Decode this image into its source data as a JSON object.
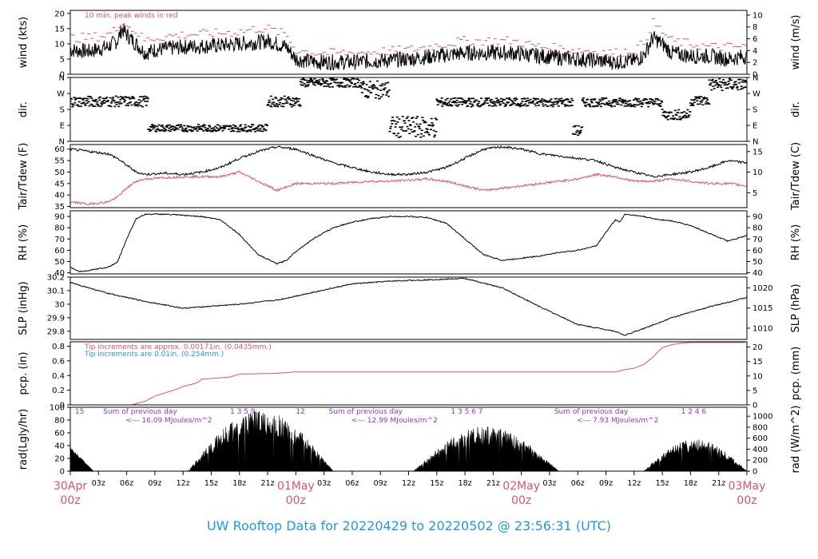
{
  "footer": "UW Rooftop Data for 20220429  to  20220502 @ 23:56:31  (UTC)",
  "colors": {
    "red": "#DF536B",
    "blue": "#2297E6",
    "purple": "#9933CC",
    "black": "#000000"
  },
  "x_ticks": [
    {
      "h": 0,
      "label": "30Apr",
      "sub": "00z",
      "major": true
    },
    {
      "h": 3,
      "label": "03z"
    },
    {
      "h": 6,
      "label": "06z"
    },
    {
      "h": 9,
      "label": "09z"
    },
    {
      "h": 12,
      "label": "12z"
    },
    {
      "h": 15,
      "label": "15z"
    },
    {
      "h": 18,
      "label": "18z"
    },
    {
      "h": 21,
      "label": "21z"
    },
    {
      "h": 24,
      "label": "01May",
      "sub": "00z",
      "major": true
    },
    {
      "h": 27,
      "label": "03z"
    },
    {
      "h": 30,
      "label": "06z"
    },
    {
      "h": 33,
      "label": "09z"
    },
    {
      "h": 36,
      "label": "12z"
    },
    {
      "h": 39,
      "label": "15z"
    },
    {
      "h": 42,
      "label": "18z"
    },
    {
      "h": 45,
      "label": "21z"
    },
    {
      "h": 48,
      "label": "02May",
      "sub": "00z",
      "major": true
    },
    {
      "h": 51,
      "label": "03z"
    },
    {
      "h": 54,
      "label": "06z"
    },
    {
      "h": 57,
      "label": "09z"
    },
    {
      "h": 60,
      "label": "12z"
    },
    {
      "h": 63,
      "label": "15z"
    },
    {
      "h": 66,
      "label": "18z"
    },
    {
      "h": 69,
      "label": "21z"
    },
    {
      "h": 72,
      "label": "03May",
      "sub": "00z",
      "major": true
    }
  ],
  "chart_data": [
    {
      "id": "wind",
      "type": "line",
      "ylabel": "wind (kts)",
      "ylabel_right": "wind (m/s)",
      "ylim": [
        0,
        21
      ],
      "yticks": [
        0,
        5,
        10,
        15,
        20
      ],
      "right_ylim": [
        0,
        10.8
      ],
      "right_yticks": [
        0,
        2,
        4,
        6,
        8,
        10
      ],
      "annotation": "10 min. peak winds in red",
      "series": [
        {
          "style": "noisy-black",
          "color": "#000000",
          "x": [
            0,
            2,
            4,
            5,
            5.5,
            6,
            7,
            8,
            9,
            12,
            16,
            18,
            20,
            21,
            22,
            23,
            24,
            26,
            30,
            36,
            42,
            47,
            50,
            54,
            58,
            60,
            61,
            62,
            63,
            64,
            66,
            68,
            70,
            72
          ],
          "y": [
            8,
            7.5,
            9,
            11,
            15,
            13,
            10,
            7,
            8,
            9,
            9.5,
            10,
            10.5,
            11,
            10,
            9,
            5,
            4,
            4,
            5,
            7,
            7,
            6,
            5,
            4,
            4.5,
            6,
            12,
            10,
            7,
            6,
            6,
            5,
            6
          ]
        },
        {
          "style": "dashes",
          "color": "#DF536B",
          "x": [
            0,
            2,
            4,
            5,
            5.5,
            6,
            7,
            8,
            9,
            12,
            16,
            18,
            20,
            21,
            22,
            23,
            24,
            26,
            30,
            36,
            42,
            47,
            50,
            54,
            58,
            60,
            61,
            62,
            63,
            64,
            66,
            68,
            70,
            72
          ],
          "y": [
            12,
            12,
            13,
            15,
            18,
            16,
            14,
            11,
            12,
            13,
            13.5,
            14,
            15,
            15,
            14,
            13,
            8,
            7,
            7,
            8,
            11,
            11,
            9,
            8,
            7,
            8,
            10,
            17,
            14,
            11,
            10,
            9,
            9,
            9
          ]
        }
      ]
    },
    {
      "id": "dir",
      "type": "scatter",
      "ylabel": "dir.",
      "ylim": [
        0,
        360
      ],
      "ytick_labels": [
        {
          "v": 0,
          "t": "N"
        },
        {
          "v": 90,
          "t": "E"
        },
        {
          "v": 180,
          "t": "S"
        },
        {
          "v": 270,
          "t": "W"
        },
        {
          "v": 360,
          "t": "N"
        }
      ],
      "segments": [
        [
          0,
          8.3,
          225,
          30
        ],
        [
          8.3,
          21,
          75,
          20
        ],
        [
          21,
          24.5,
          225,
          30
        ],
        [
          24.5,
          31,
          330,
          25
        ],
        [
          31,
          34,
          290,
          50
        ],
        [
          34,
          39,
          80,
          60
        ],
        [
          39,
          53.5,
          220,
          25
        ],
        [
          53.5,
          54.5,
          60,
          30
        ],
        [
          54.5,
          63,
          220,
          25
        ],
        [
          63,
          66,
          150,
          30
        ],
        [
          66,
          68,
          230,
          30
        ],
        [
          68,
          72,
          320,
          35
        ]
      ]
    },
    {
      "id": "temp",
      "type": "line",
      "ylabel": "Tair/Tdew (F)",
      "ylabel_right": "Tair/Tdew (C)",
      "ylim": [
        34.5,
        62
      ],
      "yticks": [
        35,
        40,
        45,
        50,
        55,
        60
      ],
      "right_ylim": [
        1.4,
        16.7
      ],
      "right_yticks": [
        5,
        10,
        15
      ],
      "series": [
        {
          "name": "Tair",
          "color": "#000000",
          "x": [
            0,
            2,
            4,
            5,
            6,
            7,
            8,
            10,
            12,
            14,
            16,
            18,
            20,
            22,
            24,
            26,
            28,
            30,
            32,
            34,
            36,
            38,
            40,
            42,
            44,
            46,
            48,
            50,
            52,
            54,
            56,
            58,
            60,
            62,
            64,
            66,
            68,
            70,
            72
          ],
          "y": [
            60,
            59,
            58,
            56,
            53,
            50,
            49,
            49.5,
            49,
            50,
            52,
            56,
            59,
            61,
            60,
            57,
            54,
            52,
            50,
            49,
            49,
            50,
            52,
            56,
            60,
            61,
            60,
            58,
            57,
            56,
            55,
            52,
            50,
            48,
            49,
            50,
            52,
            55,
            54
          ]
        },
        {
          "name": "Tdew",
          "color": "#DF536B",
          "x": [
            0,
            2,
            4,
            5,
            6,
            7,
            8,
            10,
            12,
            14,
            16,
            18,
            20,
            22,
            24,
            26,
            28,
            30,
            32,
            34,
            36,
            38,
            40,
            42,
            44,
            46,
            48,
            50,
            52,
            54,
            56,
            58,
            60,
            62,
            64,
            66,
            68,
            70,
            72
          ],
          "y": [
            37,
            36,
            37,
            39,
            43,
            46,
            47,
            47.5,
            48,
            48,
            48,
            50,
            46,
            42,
            45,
            45,
            45,
            45.5,
            46,
            46,
            46.5,
            47,
            46,
            44,
            42,
            43,
            44,
            45,
            46,
            47,
            49,
            48,
            46,
            46,
            47,
            46,
            45,
            45,
            44
          ]
        }
      ]
    },
    {
      "id": "rh",
      "type": "line",
      "ylabel": "RH (%)",
      "ylabel_right": "RH (%)",
      "ylim": [
        39,
        95
      ],
      "yticks": [
        40,
        50,
        60,
        70,
        80,
        90
      ],
      "series": [
        {
          "color": "#000000",
          "x": [
            0,
            1,
            2,
            4,
            5,
            6,
            7,
            8,
            10,
            12,
            14,
            16,
            18,
            20,
            21,
            22,
            23,
            24,
            26,
            28,
            30,
            32,
            34,
            36,
            38,
            40,
            42,
            44,
            46,
            48,
            50,
            52,
            54,
            56,
            57,
            58,
            58.5,
            59,
            60,
            61,
            62,
            64,
            66,
            68,
            70,
            72
          ],
          "y": [
            45,
            41,
            42,
            45,
            49,
            70,
            88,
            92,
            92,
            91,
            90,
            87,
            74,
            56,
            52,
            48,
            51,
            59,
            71,
            80,
            85,
            88,
            90,
            90,
            89,
            84,
            70,
            56,
            51,
            53,
            55,
            58,
            60,
            64,
            76,
            87,
            85,
            92,
            91,
            90,
            88,
            86,
            82,
            75,
            68,
            73
          ]
        }
      ]
    },
    {
      "id": "slp",
      "type": "line",
      "ylabel": "SLP (inHg)",
      "ylabel_right": "SLP (hPa)",
      "ylim": [
        29.74,
        30.2
      ],
      "yticks": [
        29.8,
        29.9,
        30.0,
        30.1,
        30.2
      ],
      "right_ylim": [
        1007.2,
        1022.7
      ],
      "right_yticks": [
        1010,
        1015,
        1020
      ],
      "series": [
        {
          "color": "#000000",
          "x": [
            0,
            4,
            8,
            12,
            14,
            18,
            22,
            26,
            30,
            34,
            38,
            42,
            46,
            50,
            54,
            58,
            59,
            61,
            64,
            68,
            72
          ],
          "y": [
            30.16,
            30.08,
            30.02,
            29.97,
            29.98,
            30.0,
            30.03,
            30.09,
            30.15,
            30.17,
            30.18,
            30.19,
            30.12,
            29.98,
            29.85,
            29.8,
            29.77,
            29.82,
            29.9,
            29.98,
            30.05
          ]
        }
      ]
    },
    {
      "id": "pcp",
      "type": "line",
      "ylabel": "pcp. (in)",
      "ylabel_right": "pcp. (mm)",
      "ylim": [
        0,
        0.86
      ],
      "yticks": [
        0,
        0.2,
        0.4,
        0.6,
        0.8
      ],
      "right_ylim": [
        0,
        21.8
      ],
      "right_yticks": [
        0,
        5,
        10,
        15,
        20
      ],
      "annotations": [
        {
          "text": "Tip increments are approx. 0.00171in. (0.0435mm.)",
          "color": "#DF536B"
        },
        {
          "text": "Tip increments are 0.01in. (0.254mm.)",
          "color": "#2297E6"
        }
      ],
      "series": [
        {
          "color": "#DF536B",
          "x": [
            0,
            6.5,
            8,
            9,
            11,
            12,
            13.5,
            14,
            17,
            18,
            22,
            24,
            30,
            36,
            42,
            48,
            52,
            58,
            59,
            60,
            61,
            62,
            62.5,
            63,
            64,
            65,
            66,
            72
          ],
          "y": [
            0,
            0,
            0.05,
            0.12,
            0.2,
            0.25,
            0.3,
            0.35,
            0.38,
            0.42,
            0.43,
            0.45,
            0.45,
            0.45,
            0.45,
            0.45,
            0.45,
            0.45,
            0.48,
            0.5,
            0.55,
            0.65,
            0.72,
            0.78,
            0.82,
            0.84,
            0.85,
            0.85
          ]
        }
      ]
    },
    {
      "id": "rad",
      "type": "area",
      "ylabel": "rad(Lgly/hr)",
      "ylabel_right": "rad (W/m^2)",
      "ylim": [
        0,
        100
      ],
      "yticks": [
        0,
        20,
        40,
        60,
        80,
        100
      ],
      "right_ylim": [
        0,
        1163
      ],
      "right_yticks": [
        0,
        200,
        400,
        600,
        800,
        1000
      ],
      "days": [
        {
          "sun": [
            12.5,
            28
          ],
          "peak": 95,
          "morning_tail": [
            0,
            2.5,
            40
          ]
        },
        {
          "sun": [
            36.5,
            52
          ],
          "peak": 70
        },
        {
          "sun": [
            61,
            72
          ],
          "peak": 50
        }
      ],
      "annotations": [
        {
          "text": "15",
          "color": "#9933CC",
          "h": 0.5
        },
        {
          "text": "Sum of previous day",
          "color": "#9933CC",
          "h": 3.5
        },
        {
          "text": "<--- 16.09 MJoules/m^2",
          "color": "#9933CC",
          "h": 3
        },
        {
          "text": "1  3  5  9",
          "color": "#9933CC",
          "h": 17
        },
        {
          "text": "12",
          "color": "#9933CC",
          "h": 24
        },
        {
          "text": "Sum of previous day",
          "color": "#9933CC",
          "h": 27.5
        },
        {
          "text": "<--- 12.99 MJoules/m^2",
          "color": "#9933CC",
          "h": 27
        },
        {
          "text": "1  3  5  6  7",
          "color": "#9933CC",
          "h": 40.5
        },
        {
          "text": "Sum of previous day",
          "color": "#9933CC",
          "h": 51.5
        },
        {
          "text": "<--- 7.93 MJoules/m^2",
          "color": "#9933CC",
          "h": 51
        },
        {
          "text": "1  2  4  6",
          "color": "#9933CC",
          "h": 65
        }
      ]
    }
  ]
}
